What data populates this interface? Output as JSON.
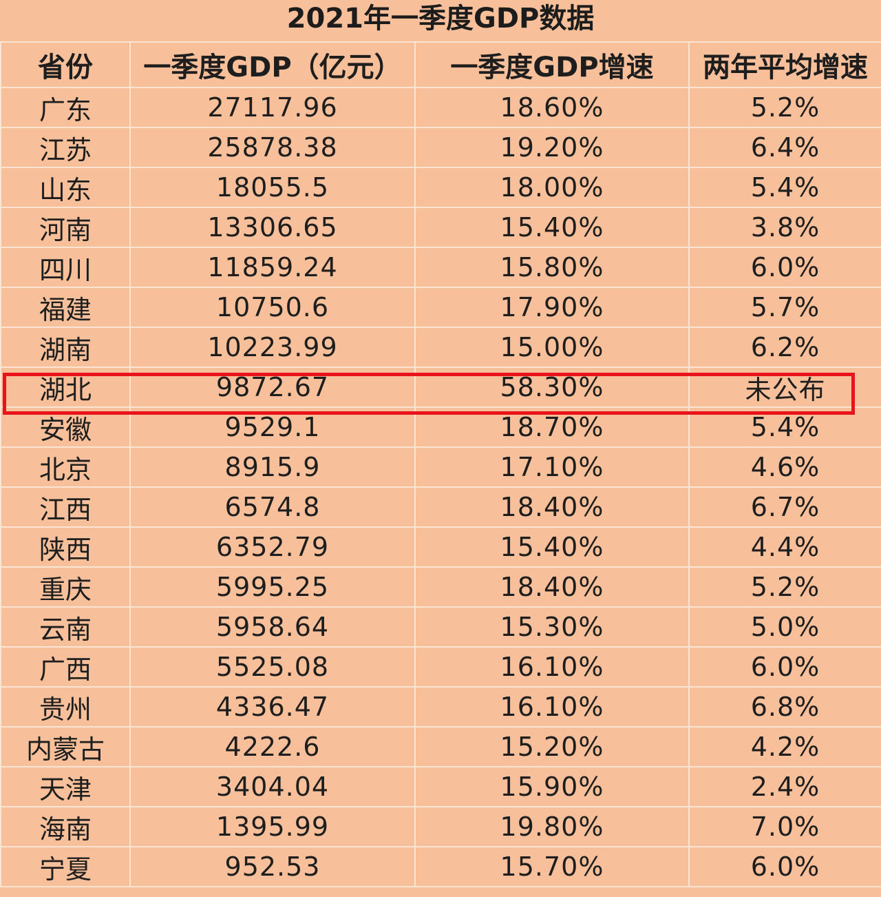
{
  "chart_data": {
    "type": "table",
    "title": "2021年一季度GDP数据",
    "columns": [
      "省份",
      "一季度GDP（亿元）",
      "一季度GDP增速",
      "两年平均增速"
    ],
    "rows": [
      [
        "广东",
        "27117.96",
        "18.60%",
        "5.2%"
      ],
      [
        "江苏",
        "25878.38",
        "19.20%",
        "6.4%"
      ],
      [
        "山东",
        "18055.5",
        "18.00%",
        "5.4%"
      ],
      [
        "河南",
        "13306.65",
        "15.40%",
        "3.8%"
      ],
      [
        "四川",
        "11859.24",
        "15.80%",
        "6.0%"
      ],
      [
        "福建",
        "10750.6",
        "17.90%",
        "5.7%"
      ],
      [
        "湖南",
        "10223.99",
        "15.00%",
        "6.2%"
      ],
      [
        "湖北",
        "9872.67",
        "58.30%",
        "未公布"
      ],
      [
        "安徽",
        "9529.1",
        "18.70%",
        "5.4%"
      ],
      [
        "北京",
        "8915.9",
        "17.10%",
        "4.6%"
      ],
      [
        "江西",
        "6574.8",
        "18.40%",
        "6.7%"
      ],
      [
        "陕西",
        "6352.79",
        "15.40%",
        "4.4%"
      ],
      [
        "重庆",
        "5995.25",
        "18.40%",
        "5.2%"
      ],
      [
        "云南",
        "5958.64",
        "15.30%",
        "5.0%"
      ],
      [
        "广西",
        "5525.08",
        "16.10%",
        "6.0%"
      ],
      [
        "贵州",
        "4336.47",
        "16.10%",
        "6.8%"
      ],
      [
        "内蒙古",
        "4222.6",
        "15.20%",
        "4.2%"
      ],
      [
        "天津",
        "3404.04",
        "15.90%",
        "2.4%"
      ],
      [
        "海南",
        "1395.99",
        "19.80%",
        "7.0%"
      ],
      [
        "宁夏",
        "952.53",
        "15.70%",
        "6.0%"
      ]
    ],
    "highlighted_row": "湖北",
    "colors": {
      "background": "#f7c09a",
      "grid": "#fde5d3",
      "highlight_border": "#e8131b",
      "text": "#1e1e1e"
    }
  }
}
